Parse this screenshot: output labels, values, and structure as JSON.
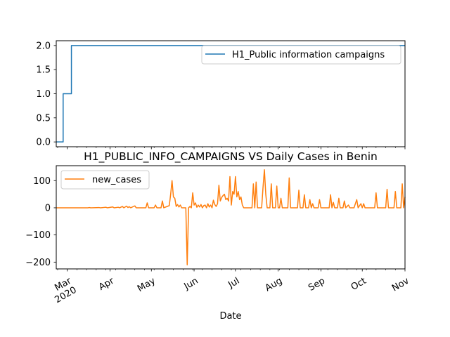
{
  "chart_data": [
    {
      "type": "line",
      "title": "",
      "xlabel": "",
      "ylabel": "",
      "ylim": [
        -0.1,
        2.1
      ],
      "yticks": [
        "0.0",
        "0.5",
        "1.0",
        "1.5",
        "2.0"
      ],
      "legend_position": "top-right",
      "grid": false,
      "series": [
        {
          "name": "H1_Public information campaigns",
          "color": "#1f77b4",
          "step_points": [
            {
              "x": "2020-02-22",
              "y": 0
            },
            {
              "x": "2020-02-27",
              "y": 0
            },
            {
              "x": "2020-02-27",
              "y": 1
            },
            {
              "x": "2020-03-04",
              "y": 1
            },
            {
              "x": "2020-03-04",
              "y": 2
            },
            {
              "x": "2020-11-01",
              "y": 2
            }
          ]
        }
      ]
    },
    {
      "type": "line",
      "title": "H1_PUBLIC_INFO_CAMPAIGNS VS Daily Cases in Benin",
      "xlabel": "Date",
      "ylabel": "",
      "ylim": [
        -225,
        155
      ],
      "yticks": [
        "−200",
        "−100",
        "0",
        "100"
      ],
      "xticks": [
        "Mar\n2020",
        "Apr",
        "May",
        "Jun",
        "Jul",
        "Aug",
        "Sep",
        "Oct",
        "Nov"
      ],
      "legend_position": "top-left",
      "grid": false,
      "series": [
        {
          "name": "new_cases",
          "color": "#ff7f0e",
          "points": [
            {
              "x": "2020-02-22",
              "y": 0
            },
            {
              "x": "2020-03-16",
              "y": 0
            },
            {
              "x": "2020-03-17",
              "y": 1
            },
            {
              "x": "2020-03-18",
              "y": 0
            },
            {
              "x": "2020-03-24",
              "y": 1
            },
            {
              "x": "2020-03-25",
              "y": 0
            },
            {
              "x": "2020-03-29",
              "y": 2
            },
            {
              "x": "2020-03-30",
              "y": 0
            },
            {
              "x": "2020-04-03",
              "y": 3
            },
            {
              "x": "2020-04-04",
              "y": 0
            },
            {
              "x": "2020-04-07",
              "y": 2
            },
            {
              "x": "2020-04-08",
              "y": 0
            },
            {
              "x": "2020-04-10",
              "y": 5
            },
            {
              "x": "2020-04-11",
              "y": 0
            },
            {
              "x": "2020-04-13",
              "y": 6
            },
            {
              "x": "2020-04-14",
              "y": 1
            },
            {
              "x": "2020-04-15",
              "y": 4
            },
            {
              "x": "2020-04-16",
              "y": 0
            },
            {
              "x": "2020-04-19",
              "y": 7
            },
            {
              "x": "2020-04-20",
              "y": 0
            },
            {
              "x": "2020-04-27",
              "y": 0
            },
            {
              "x": "2020-04-28",
              "y": 18
            },
            {
              "x": "2020-04-29",
              "y": 0
            },
            {
              "x": "2020-05-03",
              "y": 0
            },
            {
              "x": "2020-05-04",
              "y": 10
            },
            {
              "x": "2020-05-05",
              "y": 0
            },
            {
              "x": "2020-05-08",
              "y": 0
            },
            {
              "x": "2020-05-09",
              "y": 25
            },
            {
              "x": "2020-05-10",
              "y": 0
            },
            {
              "x": "2020-05-14",
              "y": 8
            },
            {
              "x": "2020-05-15",
              "y": 50
            },
            {
              "x": "2020-05-16",
              "y": 100
            },
            {
              "x": "2020-05-17",
              "y": 40
            },
            {
              "x": "2020-05-18",
              "y": 35
            },
            {
              "x": "2020-05-19",
              "y": 5
            },
            {
              "x": "2020-05-20",
              "y": 12
            },
            {
              "x": "2020-05-21",
              "y": 3
            },
            {
              "x": "2020-05-22",
              "y": 10
            },
            {
              "x": "2020-05-23",
              "y": 0
            },
            {
              "x": "2020-05-26",
              "y": 0
            },
            {
              "x": "2020-05-27",
              "y": -210
            },
            {
              "x": "2020-05-28",
              "y": 0
            },
            {
              "x": "2020-05-29",
              "y": 5
            },
            {
              "x": "2020-05-30",
              "y": 0
            },
            {
              "x": "2020-05-31",
              "y": 55
            },
            {
              "x": "2020-06-01",
              "y": 10
            },
            {
              "x": "2020-06-02",
              "y": 18
            },
            {
              "x": "2020-06-03",
              "y": 2
            },
            {
              "x": "2020-06-04",
              "y": 10
            },
            {
              "x": "2020-06-05",
              "y": 3
            },
            {
              "x": "2020-06-06",
              "y": 12
            },
            {
              "x": "2020-06-07",
              "y": 0
            },
            {
              "x": "2020-06-08",
              "y": 8
            },
            {
              "x": "2020-06-09",
              "y": 10
            },
            {
              "x": "2020-06-10",
              "y": 0
            },
            {
              "x": "2020-06-11",
              "y": 15
            },
            {
              "x": "2020-06-12",
              "y": 3
            },
            {
              "x": "2020-06-13",
              "y": 10
            },
            {
              "x": "2020-06-14",
              "y": 0
            },
            {
              "x": "2020-06-15",
              "y": 28
            },
            {
              "x": "2020-06-16",
              "y": 12
            },
            {
              "x": "2020-06-17",
              "y": 5
            },
            {
              "x": "2020-06-18",
              "y": 15
            },
            {
              "x": "2020-06-19",
              "y": 83
            },
            {
              "x": "2020-06-20",
              "y": 25
            },
            {
              "x": "2020-06-21",
              "y": 38
            },
            {
              "x": "2020-06-22",
              "y": 45
            },
            {
              "x": "2020-06-23",
              "y": 50
            },
            {
              "x": "2020-06-24",
              "y": 30
            },
            {
              "x": "2020-06-25",
              "y": 35
            },
            {
              "x": "2020-06-26",
              "y": 25
            },
            {
              "x": "2020-06-27",
              "y": 115
            },
            {
              "x": "2020-06-28",
              "y": 10
            },
            {
              "x": "2020-06-29",
              "y": 60
            },
            {
              "x": "2020-06-30",
              "y": 50
            },
            {
              "x": "2020-07-01",
              "y": 115
            },
            {
              "x": "2020-07-02",
              "y": 40
            },
            {
              "x": "2020-07-03",
              "y": 60
            },
            {
              "x": "2020-07-04",
              "y": 30
            },
            {
              "x": "2020-07-05",
              "y": 40
            },
            {
              "x": "2020-07-06",
              "y": 10
            },
            {
              "x": "2020-07-07",
              "y": 0
            },
            {
              "x": "2020-07-13",
              "y": 0
            },
            {
              "x": "2020-07-14",
              "y": 88
            },
            {
              "x": "2020-07-15",
              "y": 0
            },
            {
              "x": "2020-07-16",
              "y": 95
            },
            {
              "x": "2020-07-17",
              "y": 0
            },
            {
              "x": "2020-07-20",
              "y": 0
            },
            {
              "x": "2020-07-21",
              "y": 75
            },
            {
              "x": "2020-07-22",
              "y": 140
            },
            {
              "x": "2020-07-23",
              "y": 50
            },
            {
              "x": "2020-07-24",
              "y": 0
            },
            {
              "x": "2020-07-26",
              "y": 0
            },
            {
              "x": "2020-07-27",
              "y": 88
            },
            {
              "x": "2020-07-28",
              "y": 0
            },
            {
              "x": "2020-07-30",
              "y": 0
            },
            {
              "x": "2020-07-31",
              "y": 80
            },
            {
              "x": "2020-08-01",
              "y": 0
            },
            {
              "x": "2020-08-02",
              "y": 0
            },
            {
              "x": "2020-08-03",
              "y": 35
            },
            {
              "x": "2020-08-04",
              "y": 0
            },
            {
              "x": "2020-08-08",
              "y": 0
            },
            {
              "x": "2020-08-09",
              "y": 110
            },
            {
              "x": "2020-08-10",
              "y": 0
            },
            {
              "x": "2020-08-15",
              "y": 0
            },
            {
              "x": "2020-08-16",
              "y": 65
            },
            {
              "x": "2020-08-17",
              "y": 0
            },
            {
              "x": "2020-08-19",
              "y": 0
            },
            {
              "x": "2020-08-20",
              "y": 48
            },
            {
              "x": "2020-08-21",
              "y": 0
            },
            {
              "x": "2020-08-23",
              "y": 0
            },
            {
              "x": "2020-08-24",
              "y": 30
            },
            {
              "x": "2020-08-25",
              "y": 0
            },
            {
              "x": "2020-08-26",
              "y": 15
            },
            {
              "x": "2020-08-27",
              "y": 0
            },
            {
              "x": "2020-08-30",
              "y": 0
            },
            {
              "x": "2020-08-31",
              "y": 30
            },
            {
              "x": "2020-09-01",
              "y": 0
            },
            {
              "x": "2020-09-07",
              "y": 0
            },
            {
              "x": "2020-09-08",
              "y": 48
            },
            {
              "x": "2020-09-09",
              "y": 0
            },
            {
              "x": "2020-09-10",
              "y": 20
            },
            {
              "x": "2020-09-11",
              "y": 0
            },
            {
              "x": "2020-09-13",
              "y": 0
            },
            {
              "x": "2020-09-14",
              "y": 35
            },
            {
              "x": "2020-09-15",
              "y": 0
            },
            {
              "x": "2020-09-17",
              "y": 0
            },
            {
              "x": "2020-09-18",
              "y": 25
            },
            {
              "x": "2020-09-19",
              "y": 0
            },
            {
              "x": "2020-09-21",
              "y": 10
            },
            {
              "x": "2020-09-22",
              "y": 0
            },
            {
              "x": "2020-09-25",
              "y": 0
            },
            {
              "x": "2020-09-26",
              "y": 15
            },
            {
              "x": "2020-09-27",
              "y": 30
            },
            {
              "x": "2020-09-28",
              "y": 0
            },
            {
              "x": "2020-09-30",
              "y": 15
            },
            {
              "x": "2020-10-01",
              "y": 0
            },
            {
              "x": "2020-10-02",
              "y": 15
            },
            {
              "x": "2020-10-03",
              "y": 0
            },
            {
              "x": "2020-10-10",
              "y": 0
            },
            {
              "x": "2020-10-11",
              "y": 55
            },
            {
              "x": "2020-10-12",
              "y": 0
            },
            {
              "x": "2020-10-18",
              "y": 0
            },
            {
              "x": "2020-10-19",
              "y": 68
            },
            {
              "x": "2020-10-20",
              "y": 0
            },
            {
              "x": "2020-10-24",
              "y": 0
            },
            {
              "x": "2020-10-25",
              "y": 60
            },
            {
              "x": "2020-10-26",
              "y": 0
            },
            {
              "x": "2020-10-29",
              "y": 0
            },
            {
              "x": "2020-10-30",
              "y": 88
            },
            {
              "x": "2020-10-31",
              "y": 0
            },
            {
              "x": "2020-11-01",
              "y": 40
            }
          ]
        }
      ]
    }
  ]
}
